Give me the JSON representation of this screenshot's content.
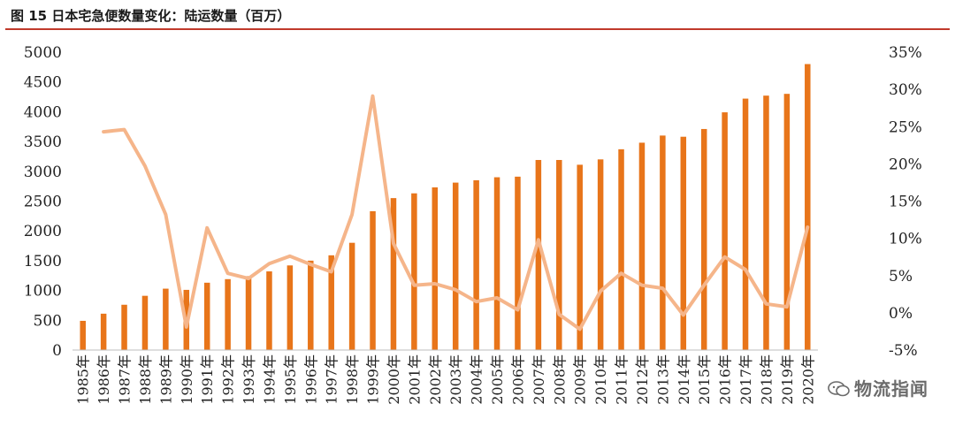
{
  "figure_title": "图 15 日本宅急便数量变化：陆运数量（百万）",
  "watermark": "物流指闻",
  "colors": {
    "bar": "#E8751A",
    "line": "#F5B58A",
    "title_rule": "#C0392B"
  },
  "chart_data": {
    "type": "bar",
    "title": "图 15 日本宅急便数量变化：陆运数量（百万）",
    "categories": [
      "1985年",
      "1986年",
      "1987年",
      "1988年",
      "1989年",
      "1990年",
      "1991年",
      "1992年",
      "1993年",
      "1994年",
      "1995年",
      "1996年",
      "1997年",
      "1998年",
      "1999年",
      "2000年",
      "2001年",
      "2002年",
      "2003年",
      "2004年",
      "2005年",
      "2006年",
      "2007年",
      "2008年",
      "2009年",
      "2010年",
      "2011年",
      "2012年",
      "2013年",
      "2014年",
      "2015年",
      "2016年",
      "2017年",
      "2018年",
      "2019年",
      "2020年"
    ],
    "series": [
      {
        "type": "bar",
        "axis": "left",
        "values": [
          490,
          610,
          760,
          910,
          1030,
          1010,
          1130,
          1190,
          1240,
          1320,
          1420,
          1500,
          1590,
          1800,
          2330,
          2550,
          2630,
          2730,
          2810,
          2850,
          2900,
          2910,
          3190,
          3190,
          3110,
          3200,
          3370,
          3480,
          3600,
          3580,
          3710,
          3990,
          4220,
          4270,
          4300,
          4800
        ]
      },
      {
        "type": "line",
        "axis": "right",
        "values": [
          null,
          24.3,
          24.6,
          19.7,
          13.2,
          -1.9,
          11.4,
          5.3,
          4.6,
          6.6,
          7.6,
          6.5,
          5.5,
          13.2,
          29.1,
          9.3,
          3.7,
          3.9,
          3.1,
          1.5,
          2.0,
          0.4,
          9.8,
          -0.2,
          -2.2,
          2.9,
          5.3,
          3.7,
          3.3,
          -0.3,
          3.7,
          7.5,
          5.8,
          1.2,
          0.8,
          11.5
        ]
      }
    ],
    "y_left": {
      "range": [
        0,
        5000
      ],
      "ticks": [
        0,
        500,
        1000,
        1500,
        2000,
        2500,
        3000,
        3500,
        4000,
        4500,
        5000
      ]
    },
    "y_right": {
      "range": [
        -5,
        35
      ],
      "ticks": [
        "-5%",
        "0%",
        "5%",
        "10%",
        "15%",
        "20%",
        "25%",
        "30%",
        "35%"
      ]
    },
    "grid": false,
    "legend": "none"
  }
}
